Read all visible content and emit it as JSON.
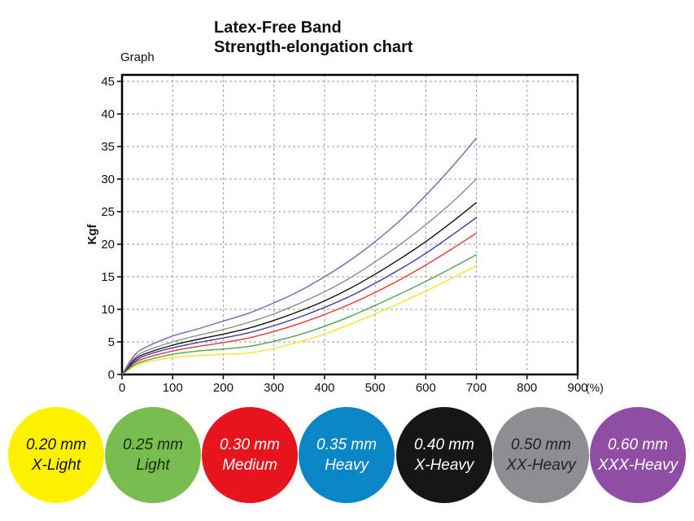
{
  "header": {
    "title_line1": "Latex-Free Band",
    "title_line2": "Strength-elongation chart",
    "graph_label": "Graph"
  },
  "chart_data": {
    "type": "line",
    "title": "Latex-Free Band Strength-elongation chart",
    "xlabel": "(%)",
    "ylabel": "Kgf",
    "xlim": [
      0,
      900
    ],
    "ylim": [
      0,
      46
    ],
    "x_ticks": [
      0,
      100,
      200,
      300,
      400,
      500,
      600,
      700,
      800,
      900
    ],
    "y_ticks": [
      0,
      5,
      10,
      15,
      20,
      25,
      30,
      35,
      40,
      45
    ],
    "grid": true,
    "x": [
      0,
      25,
      50,
      100,
      150,
      200,
      250,
      300,
      350,
      400,
      450,
      500,
      550,
      600,
      650,
      700
    ],
    "series": [
      {
        "name": "0.20 mm X-Light",
        "color": "#f2e52a",
        "values": [
          0,
          1.3,
          1.9,
          2.6,
          2.9,
          3.1,
          3.3,
          4.0,
          5.0,
          6.2,
          7.7,
          9.3,
          11.0,
          12.8,
          14.7,
          16.7
        ]
      },
      {
        "name": "0.25 mm Light",
        "color": "#4aa84a",
        "values": [
          0,
          1.5,
          2.2,
          3.1,
          3.6,
          3.9,
          4.3,
          5.1,
          6.1,
          7.4,
          8.9,
          10.6,
          12.4,
          14.3,
          16.3,
          18.4
        ]
      },
      {
        "name": "0.30 mm Medium",
        "color": "#e53a2e",
        "values": [
          0,
          1.8,
          2.6,
          3.6,
          4.3,
          4.9,
          5.6,
          6.6,
          7.8,
          9.2,
          10.8,
          12.6,
          14.6,
          16.8,
          19.2,
          21.7
        ]
      },
      {
        "name": "0.35 mm Heavy",
        "color": "#3a3aa8",
        "values": [
          0,
          2.0,
          3.0,
          4.1,
          4.9,
          5.6,
          6.4,
          7.5,
          8.8,
          10.3,
          12.0,
          14.0,
          16.2,
          18.6,
          21.3,
          24.1
        ]
      },
      {
        "name": "0.40 mm X-Heavy",
        "color": "#111111",
        "values": [
          0,
          2.3,
          3.3,
          4.5,
          5.4,
          6.2,
          7.1,
          8.3,
          9.7,
          11.3,
          13.2,
          15.4,
          17.8,
          20.4,
          23.3,
          26.4
        ]
      },
      {
        "name": "0.50 mm XX-Heavy",
        "color": "#8a8a8a",
        "values": [
          0,
          2.6,
          3.7,
          5.0,
          6.0,
          6.9,
          8.0,
          9.3,
          10.9,
          12.7,
          14.8,
          17.3,
          20.0,
          23.0,
          26.3,
          30.0
        ]
      },
      {
        "name": "0.60 mm XXX-Heavy",
        "color": "#8060b8",
        "values": [
          0,
          3.0,
          4.3,
          5.9,
          7.0,
          8.2,
          9.4,
          11.0,
          12.8,
          15.0,
          17.5,
          20.4,
          23.7,
          27.5,
          31.7,
          36.3
        ]
      }
    ]
  },
  "legend": [
    {
      "size": "0.20 mm",
      "label": "X-Light",
      "bg": "#fff200",
      "fg": "#111111"
    },
    {
      "size": "0.25 mm",
      "label": "Light",
      "bg": "#78bd4e",
      "fg": "#1a2a10"
    },
    {
      "size": "0.30 mm",
      "label": "Medium",
      "bg": "#e8141d",
      "fg": "#ffffff"
    },
    {
      "size": "0.35 mm",
      "label": "Heavy",
      "bg": "#0a86c6",
      "fg": "#ffffff"
    },
    {
      "size": "0.40 mm",
      "label": "X-Heavy",
      "bg": "#161616",
      "fg": "#ffffff"
    },
    {
      "size": "0.50 mm",
      "label": "XX-Heavy",
      "bg": "#8c8e91",
      "fg": "#222222"
    },
    {
      "size": "0.60 mm",
      "label": "XXX-Heavy",
      "bg": "#8f4da3",
      "fg": "#ffffff"
    }
  ]
}
